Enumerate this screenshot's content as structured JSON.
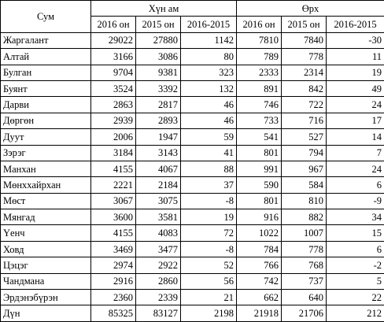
{
  "header": {
    "col_sum": "Сум",
    "group_hun": "Хүн ам",
    "group_orh": "Өрх",
    "sub": [
      "2016 он",
      "2015 он",
      "2016-2015",
      "2016 он",
      "2015 он",
      "2016-2015"
    ]
  },
  "rows": [
    {
      "name": "Жаргалант",
      "v": [
        "29022",
        "27880",
        "1142",
        "7810",
        "7840",
        "-30"
      ]
    },
    {
      "name": "Алтай",
      "v": [
        "3166",
        "3086",
        "80",
        "789",
        "778",
        "11"
      ]
    },
    {
      "name": "Булган",
      "v": [
        "9704",
        "9381",
        "323",
        "2333",
        "2314",
        "19"
      ]
    },
    {
      "name": "Буянт",
      "v": [
        "3524",
        "3392",
        "132",
        "891",
        "842",
        "49"
      ]
    },
    {
      "name": "Дарви",
      "v": [
        "2863",
        "2817",
        "46",
        "746",
        "722",
        "24"
      ]
    },
    {
      "name": "Дөргөн",
      "v": [
        "2939",
        "2893",
        "46",
        "733",
        "716",
        "17"
      ]
    },
    {
      "name": "Дуут",
      "v": [
        "2006",
        "1947",
        "59",
        "541",
        "527",
        "14"
      ]
    },
    {
      "name": "Зэрэг",
      "v": [
        "3184",
        "3143",
        "41",
        "801",
        "794",
        "7"
      ]
    },
    {
      "name": "Манхан",
      "v": [
        "4155",
        "4067",
        "88",
        "991",
        "967",
        "24"
      ]
    },
    {
      "name": "Мөнххайрхан",
      "v": [
        "2221",
        "2184",
        "37",
        "590",
        "584",
        "6"
      ]
    },
    {
      "name": "Мөст",
      "v": [
        "3067",
        "3075",
        "-8",
        "801",
        "810",
        "-9"
      ]
    },
    {
      "name": "Мянгад",
      "v": [
        "3600",
        "3581",
        "19",
        "916",
        "882",
        "34"
      ]
    },
    {
      "name": "Үенч",
      "v": [
        "4155",
        "4083",
        "72",
        "1022",
        "1007",
        "15"
      ]
    },
    {
      "name": "Ховд",
      "v": [
        "3469",
        "3477",
        "-8",
        "784",
        "778",
        "6"
      ]
    },
    {
      "name": "Цэцэг",
      "v": [
        "2974",
        "2922",
        "52",
        "766",
        "768",
        "-2"
      ]
    },
    {
      "name": "Чандмана",
      "v": [
        "2916",
        "2860",
        "56",
        "742",
        "737",
        "5"
      ]
    },
    {
      "name": "Эрдэнэбүрэн",
      "v": [
        "2360",
        "2339",
        "21",
        "662",
        "640",
        "22"
      ]
    },
    {
      "name": "Дүн",
      "v": [
        "85325",
        "83127",
        "2198",
        "21918",
        "21706",
        "212"
      ]
    }
  ]
}
